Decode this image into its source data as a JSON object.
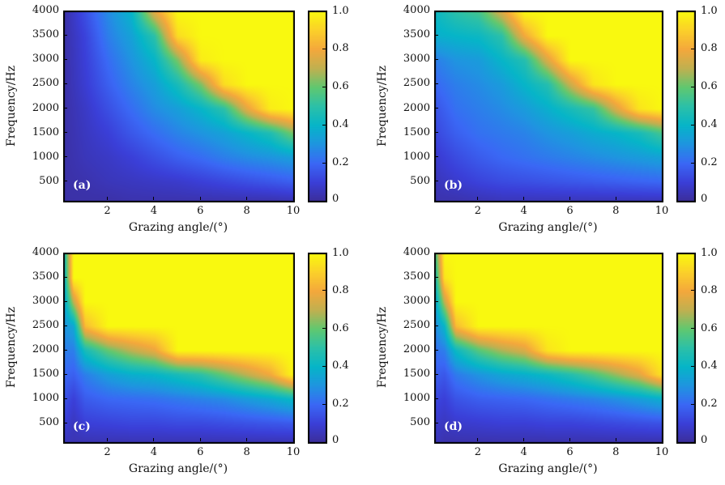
{
  "chart_data": [
    {
      "type": "heatmap",
      "panel_label": "(a)",
      "xlabel": "Grazing angle/(°)",
      "ylabel": "Frequency/Hz",
      "xlim": [
        0.1,
        10
      ],
      "ylim": [
        100,
        4000
      ],
      "xticks": [
        "2",
        "4",
        "6",
        "8",
        "10"
      ],
      "yticks": [
        "500",
        "1000",
        "1500",
        "2000",
        "2500",
        "3000",
        "3500",
        "4000"
      ],
      "colorbar": {
        "range": [
          0,
          1
        ],
        "ticks": [
          "0",
          "0.2",
          "0.4",
          "0.6",
          "0.8",
          "1.0"
        ],
        "colormap": "parula"
      },
      "x": [
        0.1,
        1,
        2,
        3,
        4,
        5,
        6,
        7,
        8,
        9,
        10
      ],
      "y": [
        100,
        500,
        1000,
        1500,
        2000,
        2500,
        3000,
        3500,
        4000
      ],
      "z_by_x": [
        [
          0.02,
          0.02,
          0.02,
          0.02,
          0.02,
          0.02,
          0.02,
          0.02,
          0.02
        ],
        [
          0.02,
          0.03,
          0.05,
          0.06,
          0.07,
          0.09,
          0.1,
          0.11,
          0.14
        ],
        [
          0.02,
          0.05,
          0.07,
          0.1,
          0.14,
          0.18,
          0.21,
          0.25,
          0.28
        ],
        [
          0.03,
          0.06,
          0.1,
          0.16,
          0.21,
          0.26,
          0.3,
          0.34,
          0.4
        ],
        [
          0.03,
          0.07,
          0.14,
          0.21,
          0.28,
          0.33,
          0.4,
          0.5,
          0.77
        ],
        [
          0.03,
          0.08,
          0.18,
          0.26,
          0.33,
          0.45,
          0.63,
          0.93,
          1
        ],
        [
          0.03,
          0.1,
          0.21,
          0.3,
          0.4,
          0.63,
          0.97,
          1,
          1
        ],
        [
          0.03,
          0.12,
          0.25,
          0.34,
          0.5,
          0.93,
          1,
          1,
          1
        ],
        [
          0.03,
          0.14,
          0.28,
          0.4,
          0.77,
          1,
          1,
          1,
          1
        ],
        [
          0.03,
          0.16,
          0.3,
          0.47,
          0.97,
          1,
          1,
          1,
          1
        ],
        [
          0.04,
          0.18,
          0.33,
          0.63,
          1,
          1,
          1,
          1,
          1
        ]
      ]
    },
    {
      "type": "heatmap",
      "panel_label": "(b)",
      "xlabel": "Grazing angle/(°)",
      "ylabel": "Frequency/Hz",
      "xlim": [
        0.1,
        10
      ],
      "ylim": [
        100,
        4000
      ],
      "xticks": [
        "2",
        "4",
        "6",
        "8",
        "10"
      ],
      "yticks": [
        "500",
        "1000",
        "1500",
        "2000",
        "2500",
        "3000",
        "3500",
        "4000"
      ],
      "colorbar": {
        "range": [
          0,
          1
        ],
        "ticks": [
          "0",
          "0.2",
          "0.4",
          "0.6",
          "0.8",
          "1.0"
        ],
        "colormap": "parula"
      },
      "x": [
        0.1,
        1,
        2,
        3,
        4,
        5,
        6,
        7,
        8,
        9,
        10
      ],
      "y": [
        100,
        500,
        1000,
        1500,
        2000,
        2500,
        3000,
        3500,
        4000
      ],
      "z_by_x": [
        [
          0.03,
          0.05,
          0.08,
          0.12,
          0.15,
          0.2,
          0.25,
          0.38,
          0.42
        ],
        [
          0.03,
          0.08,
          0.13,
          0.18,
          0.22,
          0.25,
          0.3,
          0.4,
          0.5
        ],
        [
          0.04,
          0.11,
          0.17,
          0.22,
          0.25,
          0.28,
          0.32,
          0.42,
          0.55
        ],
        [
          0.05,
          0.13,
          0.2,
          0.24,
          0.28,
          0.32,
          0.4,
          0.5,
          0.75
        ],
        [
          0.05,
          0.14,
          0.22,
          0.26,
          0.32,
          0.4,
          0.48,
          0.8,
          1
        ],
        [
          0.05,
          0.15,
          0.24,
          0.3,
          0.38,
          0.48,
          0.75,
          1,
          1
        ],
        [
          0.05,
          0.16,
          0.26,
          0.33,
          0.45,
          0.72,
          1,
          1,
          1
        ],
        [
          0.05,
          0.17,
          0.28,
          0.37,
          0.52,
          0.95,
          1,
          1,
          1
        ],
        [
          0.05,
          0.18,
          0.3,
          0.4,
          0.75,
          1,
          1,
          1,
          1
        ],
        [
          0.05,
          0.19,
          0.32,
          0.45,
          0.95,
          1,
          1,
          1,
          1
        ],
        [
          0.05,
          0.2,
          0.34,
          0.55,
          1,
          1,
          1,
          1,
          1
        ]
      ]
    },
    {
      "type": "heatmap",
      "panel_label": "(c)",
      "xlabel": "Grazing angle/(°)",
      "ylabel": "Frequency/Hz",
      "xlim": [
        0.1,
        10
      ],
      "ylim": [
        100,
        4000
      ],
      "xticks": [
        "2",
        "4",
        "6",
        "8",
        "10"
      ],
      "yticks": [
        "500",
        "1000",
        "1500",
        "2000",
        "2500",
        "3000",
        "3500",
        "4000"
      ],
      "colorbar": {
        "range": [
          0,
          1
        ],
        "ticks": [
          "0",
          "0.2",
          "0.4",
          "0.6",
          "0.8",
          "1.0"
        ],
        "colormap": "parula"
      },
      "x": [
        0.1,
        0.5,
        1,
        2,
        3,
        4,
        5,
        6,
        7,
        8,
        9,
        10
      ],
      "y": [
        100,
        500,
        1000,
        1500,
        2000,
        2500,
        3000,
        3500,
        4000
      ],
      "z_by_x": [
        [
          0.05,
          0.1,
          0.15,
          0.2,
          0.25,
          0.3,
          0.35,
          0.4,
          0.45
        ],
        [
          0.04,
          0.06,
          0.1,
          0.18,
          0.25,
          0.35,
          0.7,
          1,
          1
        ],
        [
          0.04,
          0.1,
          0.17,
          0.25,
          0.45,
          0.85,
          1,
          1,
          1
        ],
        [
          0.04,
          0.11,
          0.2,
          0.33,
          0.6,
          1,
          1,
          1,
          1
        ],
        [
          0.04,
          0.12,
          0.21,
          0.38,
          0.7,
          1,
          1,
          1,
          1
        ],
        [
          0.04,
          0.12,
          0.22,
          0.4,
          0.78,
          1,
          1,
          1,
          1
        ],
        [
          0.04,
          0.13,
          0.24,
          0.45,
          1,
          1,
          1,
          1,
          1
        ],
        [
          0.04,
          0.13,
          0.26,
          0.5,
          1,
          1,
          1,
          1,
          1
        ],
        [
          0.04,
          0.14,
          0.28,
          0.6,
          1,
          1,
          1,
          1,
          1
        ],
        [
          0.04,
          0.15,
          0.32,
          0.7,
          1,
          1,
          1,
          1,
          1
        ],
        [
          0.04,
          0.16,
          0.36,
          0.8,
          1,
          1,
          1,
          1,
          1
        ],
        [
          0.04,
          0.17,
          0.42,
          1,
          1,
          1,
          1,
          1,
          1
        ]
      ]
    },
    {
      "type": "heatmap",
      "panel_label": "(d)",
      "xlabel": "Grazing angle/(°)",
      "ylabel": "Frequency/Hz",
      "xlim": [
        0.1,
        10
      ],
      "ylim": [
        100,
        4000
      ],
      "xticks": [
        "2",
        "4",
        "6",
        "8",
        "10"
      ],
      "yticks": [
        "500",
        "1000",
        "1500",
        "2000",
        "2500",
        "3000",
        "3500",
        "4000"
      ],
      "colorbar": {
        "range": [
          0,
          1
        ],
        "ticks": [
          "0",
          "0.2",
          "0.4",
          "0.6",
          "0.8",
          "1.0"
        ],
        "colormap": "parula"
      },
      "x": [
        0.1,
        0.5,
        1,
        2,
        3,
        4,
        5,
        6,
        7,
        8,
        9,
        10
      ],
      "y": [
        100,
        500,
        1000,
        1500,
        2000,
        2500,
        3000,
        3500,
        4000
      ],
      "z_by_x": [
        [
          0.05,
          0.08,
          0.12,
          0.18,
          0.22,
          0.28,
          0.35,
          0.45,
          0.55
        ],
        [
          0.03,
          0.06,
          0.1,
          0.16,
          0.25,
          0.4,
          0.7,
          0.95,
          1
        ],
        [
          0.03,
          0.08,
          0.15,
          0.24,
          0.42,
          0.85,
          1,
          1,
          1
        ],
        [
          0.03,
          0.09,
          0.18,
          0.3,
          0.58,
          1,
          1,
          1,
          1
        ],
        [
          0.03,
          0.1,
          0.19,
          0.35,
          0.68,
          1,
          1,
          1,
          1
        ],
        [
          0.03,
          0.1,
          0.2,
          0.38,
          0.75,
          1,
          1,
          1,
          1
        ],
        [
          0.03,
          0.11,
          0.22,
          0.42,
          0.95,
          1,
          1,
          1,
          1
        ],
        [
          0.03,
          0.11,
          0.24,
          0.48,
          1,
          1,
          1,
          1,
          1
        ],
        [
          0.03,
          0.12,
          0.26,
          0.56,
          1,
          1,
          1,
          1,
          1
        ],
        [
          0.03,
          0.13,
          0.29,
          0.66,
          1,
          1,
          1,
          1,
          1
        ],
        [
          0.03,
          0.14,
          0.33,
          0.76,
          1,
          1,
          1,
          1,
          1
        ],
        [
          0.03,
          0.15,
          0.38,
          0.95,
          1,
          1,
          1,
          1,
          1
        ]
      ]
    }
  ],
  "colors": {
    "colormap_stops": [
      "#3b2e9b",
      "#3a3fd8",
      "#3a68f5",
      "#1f95e0",
      "#06b5c8",
      "#2cc0a8",
      "#60c870",
      "#c0b050",
      "#f4a83c",
      "#fbd02a",
      "#f9f90f"
    ],
    "panel_label": "#ffffff"
  }
}
